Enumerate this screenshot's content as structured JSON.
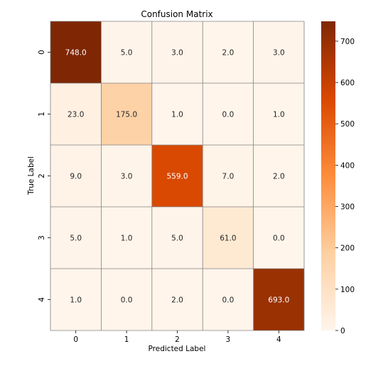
{
  "chart_data": {
    "type": "heatmap",
    "title": "Confusion Matrix",
    "xlabel": "Predicted Label",
    "ylabel": "True Label",
    "x_categories": [
      "0",
      "1",
      "2",
      "3",
      "4"
    ],
    "y_categories": [
      "0",
      "1",
      "2",
      "3",
      "4"
    ],
    "values": [
      [
        748,
        5,
        3,
        2,
        3
      ],
      [
        23,
        175,
        1,
        0,
        1
      ],
      [
        9,
        3,
        559,
        7,
        2
      ],
      [
        5,
        1,
        5,
        61,
        0
      ],
      [
        1,
        0,
        2,
        0,
        693
      ]
    ],
    "cell_labels": [
      [
        "748.0",
        "5.0",
        "3.0",
        "2.0",
        "3.0"
      ],
      [
        "23.0",
        "175.0",
        "1.0",
        "0.0",
        "1.0"
      ],
      [
        "9.0",
        "3.0",
        "559.0",
        "7.0",
        "2.0"
      ],
      [
        "5.0",
        "1.0",
        "5.0",
        "61.0",
        "0.0"
      ],
      [
        "1.0",
        "0.0",
        "2.0",
        "0.0",
        "693.0"
      ]
    ],
    "color_range": [
      0,
      748
    ],
    "colormap": [
      "#fff5eb",
      "#fdd0a2",
      "#fd8d3c",
      "#d94801",
      "#7f2704"
    ],
    "colorbar": {
      "ticks": [
        0,
        100,
        200,
        300,
        400,
        500,
        600,
        700
      ],
      "tick_labels": [
        "0",
        "100",
        "200",
        "300",
        "400",
        "500",
        "600",
        "700"
      ]
    },
    "grid_line_color": "#808080",
    "legend": "colorbar-right"
  }
}
